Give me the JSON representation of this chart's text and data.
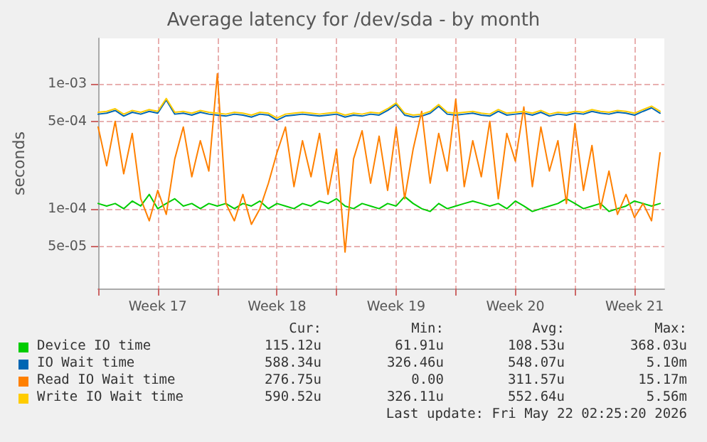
{
  "chart_data": {
    "type": "line",
    "title": "Average latency for /dev/sda - by month",
    "ylabel": "seconds",
    "log": "y",
    "grid": true,
    "legend": "bottom",
    "marker": "none",
    "line_style": "solid",
    "x": [
      "2026-04-20T00:00",
      "2026-04-20T12:00",
      "2026-04-21T00:00",
      "2026-04-21T12:00",
      "2026-04-22T00:00",
      "2026-04-22T12:00",
      "2026-04-23T00:00",
      "2026-04-23T12:00",
      "2026-04-24T00:00",
      "2026-04-24T12:00",
      "2026-04-25T00:00",
      "2026-04-25T12:00",
      "2026-04-26T00:00",
      "2026-04-26T12:00",
      "2026-04-27T00:00",
      "2026-04-27T12:00",
      "2026-04-28T00:00",
      "2026-04-28T12:00",
      "2026-04-29T00:00",
      "2026-04-29T12:00",
      "2026-04-30T00:00",
      "2026-04-30T12:00",
      "2026-05-01T00:00",
      "2026-05-01T12:00",
      "2026-05-02T00:00",
      "2026-05-02T12:00",
      "2026-05-03T00:00",
      "2026-05-03T12:00",
      "2026-05-04T00:00",
      "2026-05-04T12:00",
      "2026-05-05T00:00",
      "2026-05-05T12:00",
      "2026-05-06T00:00",
      "2026-05-06T12:00",
      "2026-05-07T00:00",
      "2026-05-07T12:00",
      "2026-05-08T00:00",
      "2026-05-08T12:00",
      "2026-05-09T00:00",
      "2026-05-09T12:00",
      "2026-05-10T00:00",
      "2026-05-10T12:00",
      "2026-05-11T00:00",
      "2026-05-11T12:00",
      "2026-05-12T00:00",
      "2026-05-12T12:00",
      "2026-05-13T00:00",
      "2026-05-13T12:00",
      "2026-05-14T00:00",
      "2026-05-14T12:00",
      "2026-05-15T00:00",
      "2026-05-15T12:00",
      "2026-05-16T00:00",
      "2026-05-16T12:00",
      "2026-05-17T00:00",
      "2026-05-17T12:00",
      "2026-05-18T00:00",
      "2026-05-18T12:00",
      "2026-05-19T00:00",
      "2026-05-19T12:00",
      "2026-05-20T00:00",
      "2026-05-20T12:00",
      "2026-05-21T00:00",
      "2026-05-21T12:00",
      "2026-05-22T00:00",
      "2026-05-22T12:00",
      "2026-05-23T00:00"
    ],
    "xlim": [
      "2026-04-20T00:00",
      "2026-05-23T06:00"
    ],
    "xticks": [
      {
        "value": "2026-04-20T00:00",
        "label": null
      },
      {
        "value": "2026-04-23T12:00",
        "label": "Week 17"
      },
      {
        "value": "2026-04-27T00:00",
        "label": null
      },
      {
        "value": "2026-04-30T12:00",
        "label": "Week 18"
      },
      {
        "value": "2026-05-04T00:00",
        "label": null
      },
      {
        "value": "2026-05-07T12:00",
        "label": "Week 19"
      },
      {
        "value": "2026-05-11T00:00",
        "label": null
      },
      {
        "value": "2026-05-14T12:00",
        "label": "Week 20"
      },
      {
        "value": "2026-05-18T00:00",
        "label": null
      },
      {
        "value": "2026-05-21T12:00",
        "label": "Week 21"
      }
    ],
    "ylim": [
      2.3e-05,
      0.0023
    ],
    "yticks": [
      {
        "value": 5e-05,
        "label": "5e-05"
      },
      {
        "value": 0.0001,
        "label": "1e-04"
      },
      {
        "value": 0.0005,
        "label": "5e-04"
      },
      {
        "value": 0.001,
        "label": "1e-03"
      }
    ],
    "series": [
      {
        "name": "Device IO time",
        "color": "#00cc00",
        "values": [
          0.00011,
          0.000105,
          0.00011,
          0.0001,
          0.000115,
          0.000105,
          0.00013,
          0.0001,
          0.00011,
          0.00012,
          0.000105,
          0.00011,
          0.0001,
          0.00011,
          0.000105,
          0.00011,
          0.0001,
          0.00011,
          0.000105,
          0.000115,
          0.0001,
          0.00011,
          0.000105,
          0.0001,
          0.00011,
          0.000105,
          0.000115,
          0.00011,
          0.00012,
          0.000105,
          0.0001,
          0.00011,
          0.000105,
          0.0001,
          0.00011,
          0.000105,
          0.000125,
          0.00011,
          0.0001,
          9.5e-05,
          0.00011,
          0.0001,
          0.000105,
          0.00011,
          0.000115,
          0.00011,
          0.000105,
          0.00011,
          0.0001,
          0.000115,
          0.000105,
          9.5e-05,
          0.0001,
          0.000105,
          0.00011,
          0.00012,
          0.00011,
          0.0001,
          0.000105,
          0.00011,
          9.5e-05,
          0.0001,
          0.000105,
          0.000115,
          0.00011,
          0.000105,
          0.00011
        ]
      },
      {
        "name": "IO Wait time",
        "color": "#0066b3",
        "values": [
          0.00057,
          0.00058,
          0.00061,
          0.00055,
          0.00059,
          0.00057,
          0.0006,
          0.00058,
          0.00074,
          0.00057,
          0.00058,
          0.00056,
          0.00059,
          0.00057,
          0.00056,
          0.00055,
          0.00057,
          0.00056,
          0.00054,
          0.00057,
          0.00056,
          0.00051,
          0.00055,
          0.00056,
          0.00057,
          0.00056,
          0.00055,
          0.00056,
          0.00057,
          0.00054,
          0.00056,
          0.00055,
          0.00057,
          0.00056,
          0.00061,
          0.00068,
          0.00056,
          0.00054,
          0.00055,
          0.00058,
          0.00066,
          0.00057,
          0.00056,
          0.00057,
          0.00058,
          0.00056,
          0.00055,
          0.0006,
          0.00056,
          0.00057,
          0.00058,
          0.00056,
          0.00059,
          0.00055,
          0.00057,
          0.00056,
          0.00058,
          0.00057,
          0.0006,
          0.00058,
          0.00057,
          0.00059,
          0.00058,
          0.00056,
          0.0006,
          0.00064,
          0.00058
        ]
      },
      {
        "name": "Read IO Wait time",
        "color": "#ff8000",
        "values": [
          0.00045,
          0.00022,
          0.0005,
          0.00019,
          0.0004,
          0.00012,
          8e-05,
          0.00014,
          9e-05,
          0.00025,
          0.00045,
          0.00018,
          0.00035,
          0.0002,
          0.0012,
          0.00011,
          8e-05,
          0.00013,
          7.5e-05,
          0.0001,
          0.00016,
          0.00028,
          0.00045,
          0.00015,
          0.00035,
          0.00018,
          0.0004,
          0.00013,
          0.0003,
          4.5e-05,
          0.00025,
          0.00042,
          0.00016,
          0.00038,
          0.00014,
          0.00045,
          0.00012,
          0.0003,
          0.0006,
          0.00016,
          0.0004,
          0.0002,
          0.00075,
          0.00015,
          0.00035,
          0.00018,
          0.0005,
          0.00012,
          0.0004,
          0.00024,
          0.00065,
          0.00015,
          0.00045,
          0.0002,
          0.00035,
          0.00011,
          0.00048,
          0.00014,
          0.00032,
          0.0001,
          0.0002,
          9e-05,
          0.00013,
          8.5e-05,
          0.00011,
          8e-05,
          0.00028
        ]
      },
      {
        "name": "Write IO Wait time",
        "color": "#ffcc00",
        "values": [
          0.00059,
          0.0006,
          0.00063,
          0.00057,
          0.00061,
          0.00059,
          0.00062,
          0.0006,
          0.00076,
          0.00059,
          0.0006,
          0.00058,
          0.00061,
          0.00059,
          0.00058,
          0.00057,
          0.00059,
          0.00058,
          0.00056,
          0.00059,
          0.00058,
          0.00053,
          0.00057,
          0.00058,
          0.00059,
          0.00058,
          0.00057,
          0.00058,
          0.00059,
          0.00056,
          0.00058,
          0.00057,
          0.00059,
          0.00058,
          0.00063,
          0.0007,
          0.00058,
          0.00056,
          0.00057,
          0.0006,
          0.00068,
          0.00059,
          0.00058,
          0.00059,
          0.0006,
          0.00058,
          0.00057,
          0.00062,
          0.00058,
          0.00059,
          0.0006,
          0.00058,
          0.00061,
          0.00057,
          0.00059,
          0.00058,
          0.0006,
          0.00059,
          0.00062,
          0.0006,
          0.00059,
          0.00061,
          0.0006,
          0.00058,
          0.00062,
          0.00066,
          0.0006
        ]
      }
    ],
    "annotations": [
      "Cur:",
      "Min:",
      "Avg:",
      "Max:",
      "115.12u",
      "61.91u",
      "108.53u",
      "368.03u",
      "588.34u",
      "326.46u",
      "548.07u",
      "5.10m",
      "276.75u",
      "0.00",
      "311.57u",
      "15.17m",
      "590.52u",
      "326.11u",
      "552.64u",
      "5.56m",
      "Last update: Fri May 22 02:25:20 2026"
    ]
  }
}
